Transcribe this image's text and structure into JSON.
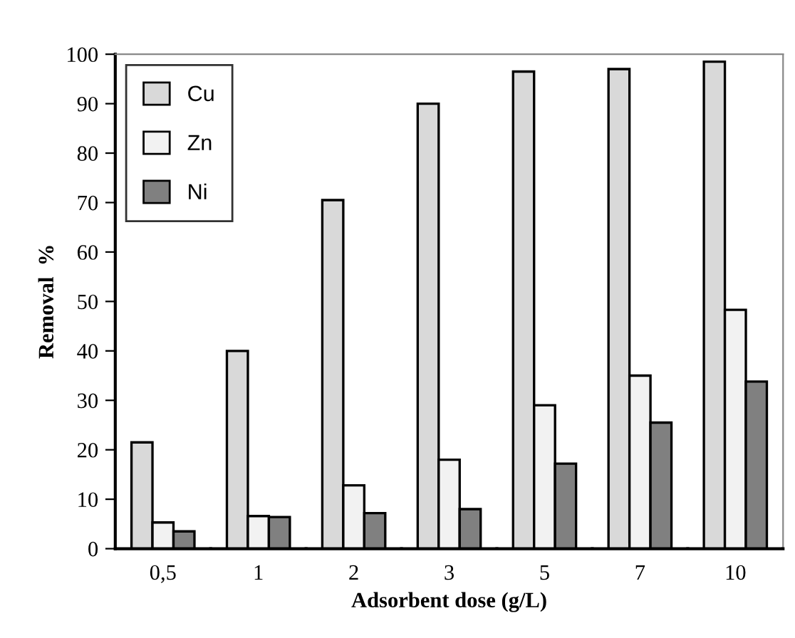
{
  "chart_data": {
    "type": "bar",
    "xlabel": "Adsorbent dose (g/L)",
    "ylabel": "Removal  %",
    "categories": [
      "0,5",
      "1",
      "2",
      "3",
      "5",
      "7",
      "10"
    ],
    "series": [
      {
        "name": "Cu",
        "color": "#d9d9d9",
        "values": [
          21.5,
          40,
          70.5,
          90,
          96.5,
          97,
          98.5
        ]
      },
      {
        "name": "Zn",
        "color": "#f2f2f2",
        "values": [
          5.3,
          6.6,
          12.8,
          18,
          29,
          35,
          48.3
        ]
      },
      {
        "name": "Ni",
        "color": "#808080",
        "values": [
          3.5,
          6.4,
          7.2,
          8,
          17.2,
          25.5,
          33.8
        ]
      }
    ],
    "ylim": [
      0,
      100
    ],
    "yticks": [
      0,
      10,
      20,
      30,
      40,
      50,
      60,
      70,
      80,
      90,
      100
    ],
    "grid": false,
    "legend": "top left"
  }
}
